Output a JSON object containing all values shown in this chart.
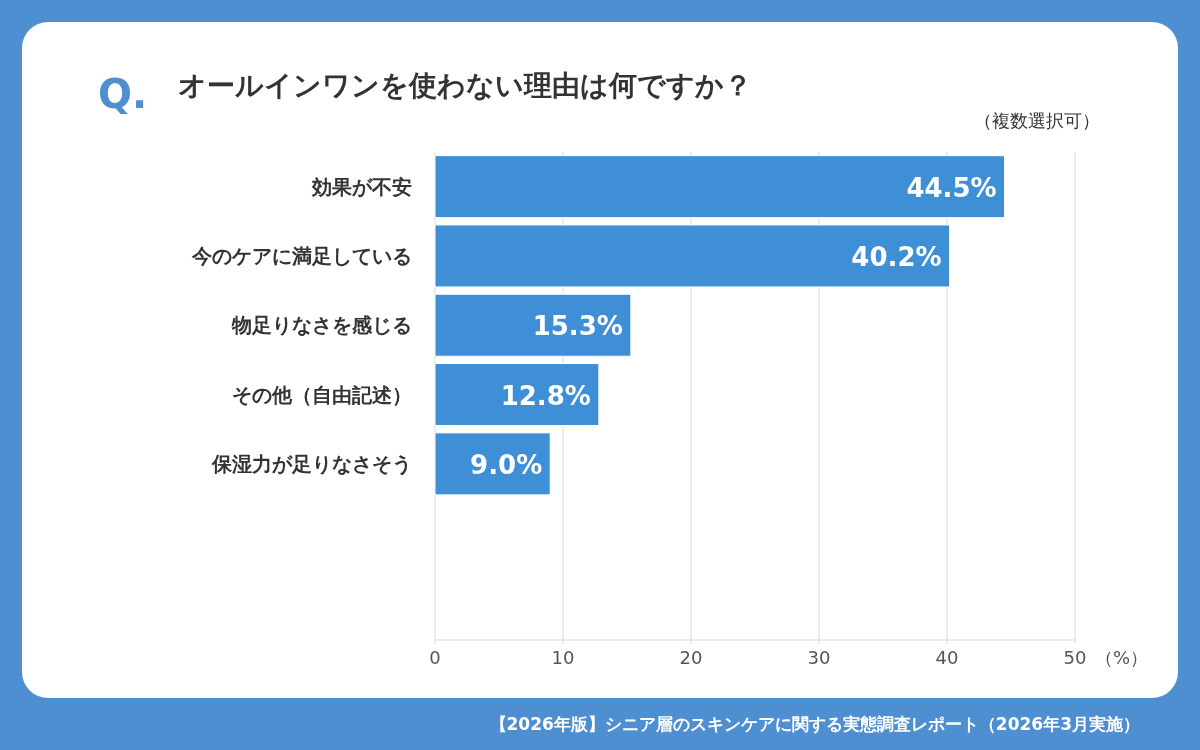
{
  "chart_data": {
    "type": "bar",
    "orientation": "horizontal",
    "title": "オールインワンを使わない理由は何ですか？",
    "subtitle": "（複数選択可）",
    "xlabel": "（%）",
    "categories": [
      "効果が不安",
      "今のケアに満足している",
      "物足りなさを感じる",
      "その他（自由記述）",
      "保湿力が足りなさそう"
    ],
    "values": [
      44.5,
      40.2,
      15.3,
      12.8,
      9.0
    ],
    "value_labels": [
      "44.5%",
      "40.2%",
      "15.3%",
      "12.8%",
      "9.0%"
    ],
    "color": "#3f8fd6",
    "xlim": [
      0,
      50
    ],
    "xticks": [
      0,
      10,
      20,
      30,
      40,
      50
    ],
    "grid": "x",
    "legend": false,
    "annotations": [
      "Q.",
      "【2026年版】シニア層のスキンケアに関する実態調査レポート（2026年3月実施）"
    ]
  }
}
